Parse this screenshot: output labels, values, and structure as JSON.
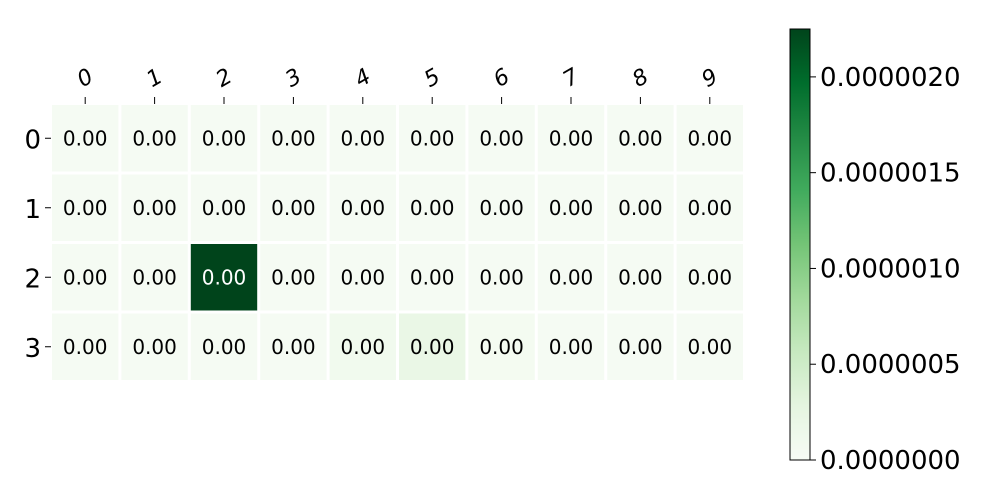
{
  "chart_data": {
    "type": "heatmap",
    "title": "",
    "xlabel": "",
    "ylabel": "",
    "colormap": "Greens",
    "x_categories": [
      "0",
      "1",
      "2",
      "3",
      "4",
      "5",
      "6",
      "7",
      "8",
      "9"
    ],
    "y_categories": [
      "0",
      "1",
      "2",
      "3"
    ],
    "values": [
      [
        3e-08,
        3e-08,
        3e-08,
        3e-08,
        3e-08,
        3e-08,
        3e-08,
        3e-08,
        3e-08,
        3e-08
      ],
      [
        3e-08,
        3e-08,
        3e-08,
        3e-08,
        3e-08,
        3e-08,
        3e-08,
        3e-08,
        3e-08,
        3e-08
      ],
      [
        3e-08,
        3e-08,
        2.25e-06,
        3e-08,
        3e-08,
        3e-08,
        3e-08,
        3e-08,
        3e-08,
        3e-08
      ],
      [
        3e-08,
        3e-08,
        3e-08,
        3e-08,
        1e-07,
        2e-07,
        5e-08,
        3e-08,
        3e-08,
        3e-08
      ]
    ],
    "cell_labels": [
      [
        "0.00",
        "0.00",
        "0.00",
        "0.00",
        "0.00",
        "0.00",
        "0.00",
        "0.00",
        "0.00",
        "0.00"
      ],
      [
        "0.00",
        "0.00",
        "0.00",
        "0.00",
        "0.00",
        "0.00",
        "0.00",
        "0.00",
        "0.00",
        "0.00"
      ],
      [
        "0.00",
        "0.00",
        "0.00",
        "0.00",
        "0.00",
        "0.00",
        "0.00",
        "0.00",
        "0.00",
        "0.00"
      ],
      [
        "0.00",
        "0.00",
        "0.00",
        "0.00",
        "0.00",
        "0.00",
        "0.00",
        "0.00",
        "0.00",
        "0.00"
      ]
    ],
    "colorbar": {
      "min": 0.0,
      "max": 2.25e-06,
      "ticks": [
        0.0,
        5e-07,
        1e-06,
        1.5e-06,
        2e-06
      ],
      "tick_labels": [
        "0.0000000",
        "0.0000005",
        "0.0000010",
        "0.0000015",
        "0.0000020"
      ]
    },
    "x_ticks_position": "top",
    "grid": false
  }
}
